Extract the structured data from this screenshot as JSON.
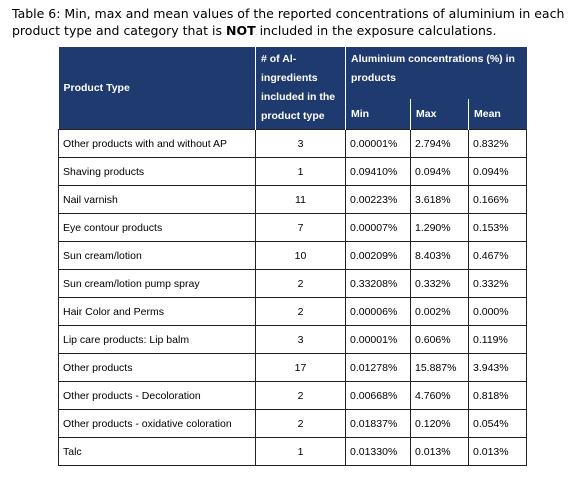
{
  "caption": {
    "prefix": "Table 6: Min, max and mean values of the reported concentrations of aluminium in each product type and category that is ",
    "bold": "NOT",
    "suffix": " included in the exposure calculations."
  },
  "table": {
    "headers": {
      "product_type": "Product Type",
      "ingredients": "# of Al-ingredients included in the product type",
      "concentrations": "Aluminium concentrations (%) in products",
      "min": "Min",
      "max": "Max",
      "mean": "Mean"
    },
    "rows": [
      {
        "product": "Other products with and without AP",
        "count": "3",
        "min": "0.00001%",
        "max": "2.794%",
        "mean": "0.832%"
      },
      {
        "product": "Shaving products",
        "count": "1",
        "min": "0.09410%",
        "max": "0.094%",
        "mean": "0.094%"
      },
      {
        "product": "Nail varnish",
        "count": "11",
        "min": "0.00223%",
        "max": "3.618%",
        "mean": "0.166%"
      },
      {
        "product": "Eye contour products",
        "count": "7",
        "min": "0.00007%",
        "max": "1.290%",
        "mean": "0.153%"
      },
      {
        "product": "Sun cream/lotion",
        "count": "10",
        "min": "0.00209%",
        "max": "8.403%",
        "mean": "0.467%"
      },
      {
        "product": "Sun cream/lotion pump spray",
        "count": "2",
        "min": "0.33208%",
        "max": "0.332%",
        "mean": "0.332%"
      },
      {
        "product": "Hair Color and Perms",
        "count": "2",
        "min": "0.00006%",
        "max": "0.002%",
        "mean": "0.000%"
      },
      {
        "product": "Lip care products: Lip balm",
        "count": "3",
        "min": "0.00001%",
        "max": "0.606%",
        "mean": "0.119%"
      },
      {
        "product": "Other products",
        "count": "17",
        "min": "0.01278%",
        "max": "15.887%",
        "mean": "3.943%"
      },
      {
        "product": "Other products - Decoloration",
        "count": "2",
        "min": "0.00668%",
        "max": "4.760%",
        "mean": "0.818%"
      },
      {
        "product": "Other products - oxidative coloration",
        "count": "2",
        "min": "0.01837%",
        "max": "0.120%",
        "mean": "0.054%"
      },
      {
        "product": "Talc",
        "count": "1",
        "min": "0.01330%",
        "max": "0.013%",
        "mean": "0.013%"
      }
    ]
  }
}
